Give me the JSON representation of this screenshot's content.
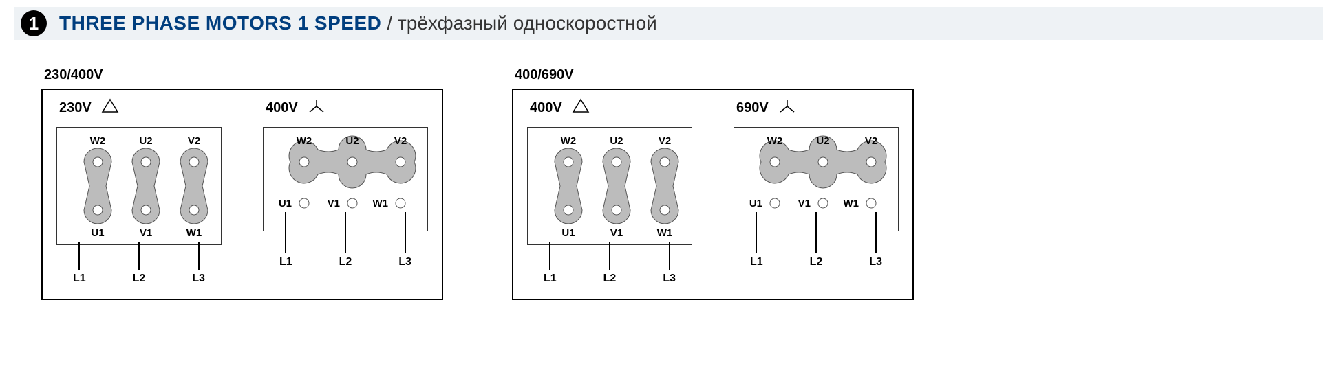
{
  "header": {
    "number": "1",
    "title_en": "THREE PHASE MOTORS 1 SPEED",
    "title_ru": "/ трёхфазный односкоростной",
    "title_color": "#003e7e",
    "bar_bg": "#eef2f5"
  },
  "groups": [
    {
      "label": "230/400V",
      "panels": [
        {
          "voltage": "230V",
          "conn_type": "delta",
          "top_terminals": [
            "W2",
            "U2",
            "V2"
          ],
          "bottom_terminals": [
            "U1",
            "V1",
            "W1"
          ],
          "lines": [
            "L1",
            "L2",
            "L3"
          ],
          "bridge": "delta"
        },
        {
          "voltage": "400V",
          "conn_type": "star",
          "top_terminals": [
            "W2",
            "U2",
            "V2"
          ],
          "bottom_terminals": [
            "U1",
            "V1",
            "W1"
          ],
          "lines": [
            "L1",
            "L2",
            "L3"
          ],
          "bridge": "star"
        }
      ]
    },
    {
      "label": "400/690V",
      "panels": [
        {
          "voltage": "400V",
          "conn_type": "delta",
          "top_terminals": [
            "W2",
            "U2",
            "V2"
          ],
          "bottom_terminals": [
            "U1",
            "V1",
            "W1"
          ],
          "lines": [
            "L1",
            "L2",
            "L3"
          ],
          "bridge": "delta"
        },
        {
          "voltage": "690V",
          "conn_type": "star",
          "top_terminals": [
            "W2",
            "U2",
            "V2"
          ],
          "bottom_terminals": [
            "U1",
            "V1",
            "W1"
          ],
          "lines": [
            "L1",
            "L2",
            "L3"
          ],
          "bridge": "star"
        }
      ]
    }
  ],
  "style": {
    "terminal_fill": "#bcbcbc",
    "terminal_stroke": "#555",
    "terminal_radius": 20,
    "small_radius": 7,
    "spacing": 70,
    "font_family": "Arial",
    "label_font_size": 15,
    "voltage_font_size": 20
  }
}
